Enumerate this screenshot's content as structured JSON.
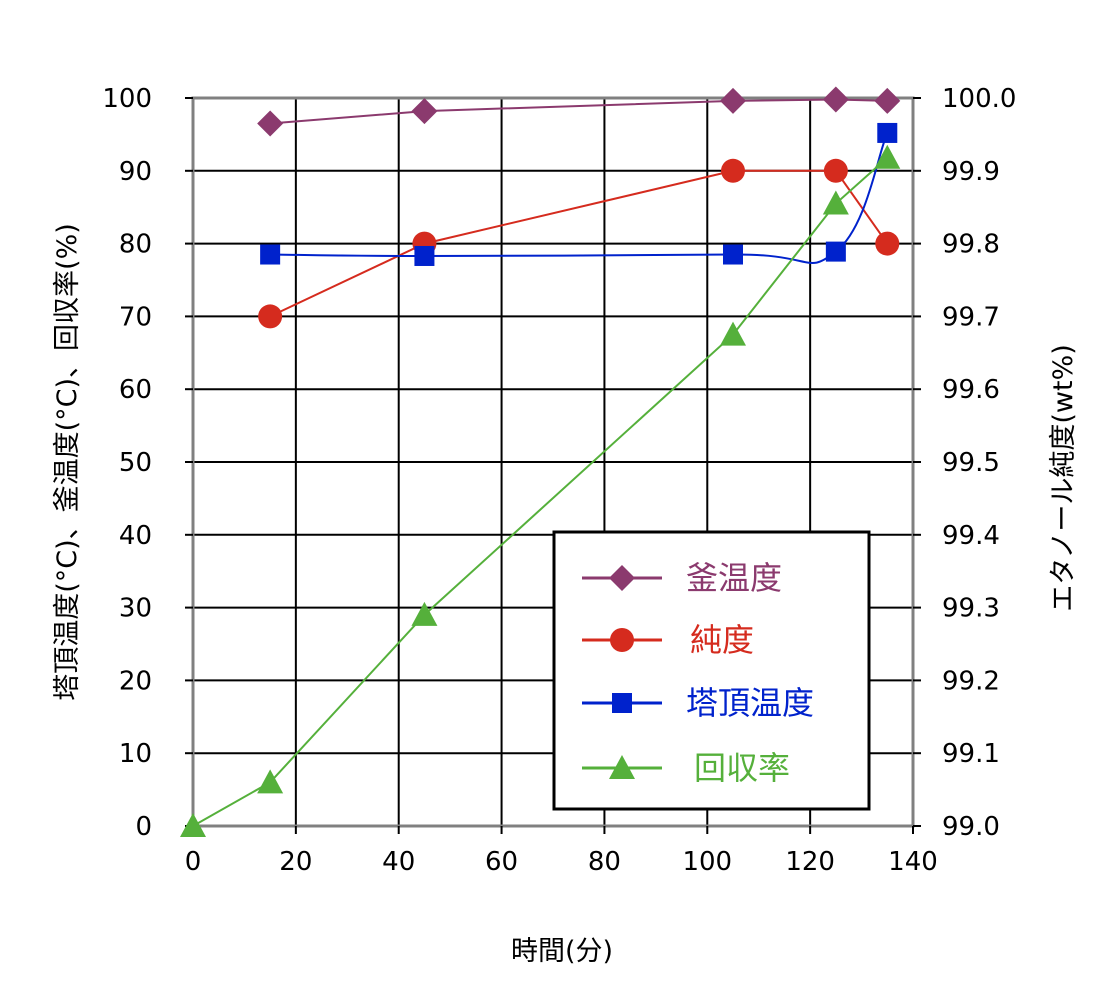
{
  "chart_data": {
    "type": "line",
    "title": "",
    "xlabel": "時間(分)",
    "ylabel_left": "塔頂温度(°C)、釜温度(°C)、回収率(%)",
    "ylabel_right": "エタノール純度(wt%)",
    "xlim": [
      0,
      140
    ],
    "ylim_left": [
      0,
      100
    ],
    "ylim_right": [
      99.0,
      100.0
    ],
    "x_ticks": [
      "0",
      "20",
      "40",
      "60",
      "80",
      "100",
      "120",
      "140"
    ],
    "y_ticks_left": [
      "0",
      "10",
      "20",
      "30",
      "40",
      "50",
      "60",
      "70",
      "80",
      "90",
      "100"
    ],
    "y_ticks_right": [
      "99.0",
      "99.1",
      "99.2",
      "99.3",
      "99.4",
      "99.5",
      "99.6",
      "99.7",
      "99.8",
      "99.9",
      "100.0"
    ],
    "grid": true,
    "legend_position": "lower-right",
    "series": [
      {
        "name": "釜温度",
        "axis": "left",
        "marker": "diamond",
        "color": "#8B3A6E",
        "smooth": false,
        "x": [
          15,
          45,
          105,
          125,
          135
        ],
        "y": [
          96.5,
          98.2,
          99.6,
          99.8,
          99.6
        ]
      },
      {
        "name": "純度",
        "axis": "right",
        "marker": "circle",
        "color": "#D52B1E",
        "smooth": false,
        "x": [
          15,
          45,
          105,
          125,
          135
        ],
        "y": [
          99.7,
          99.8,
          99.9,
          99.9,
          99.8
        ]
      },
      {
        "name": "塔頂温度",
        "axis": "left",
        "marker": "square",
        "color": "#0022CC",
        "smooth": true,
        "x": [
          15,
          45,
          105,
          125,
          135
        ],
        "y": [
          78.5,
          78.3,
          78.5,
          78.9,
          95.2
        ]
      },
      {
        "name": "回収率",
        "axis": "left",
        "marker": "triangle",
        "color": "#55B03B",
        "smooth": false,
        "x": [
          0,
          15,
          45,
          105,
          125,
          135
        ],
        "y": [
          0,
          6,
          29,
          67.5,
          85.5,
          91.8
        ]
      }
    ]
  }
}
